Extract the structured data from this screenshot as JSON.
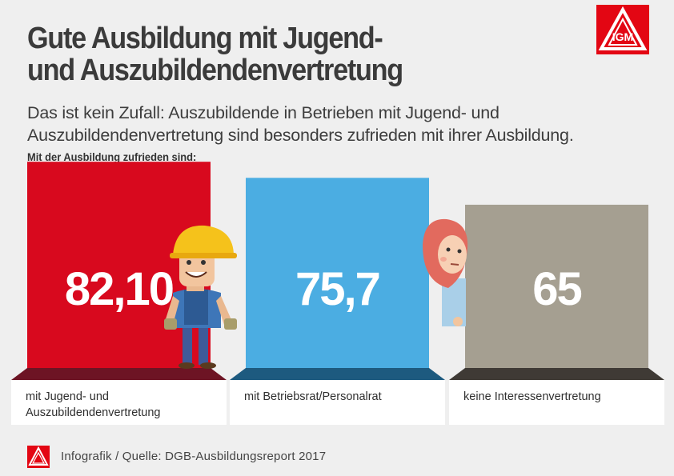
{
  "title_line1": "Gute Ausbildung mit Jugend-",
  "title_line2": "und Auszubildendenvertretung",
  "subtitle_line1": "Das ist kein Zufall: Auszubildende in Betrieben mit Jugend- und",
  "subtitle_line2": "Auszubildendenvertretung sind besonders zufrieden mit ihrer Ausbildung.",
  "chart_caption": "Mit der Ausbildung zufrieden sind:",
  "source": "Infografik / Quelle: DGB-Ausbildungsreport 2017",
  "logo_text": "IGM",
  "chart_data": {
    "type": "bar",
    "categories": [
      [
        "mit Jugend- und",
        "Auszubildendenvertretung"
      ],
      [
        "mit Betriebsrat/Personalrat"
      ],
      [
        "keine Interessenvertretung"
      ]
    ],
    "values": [
      82.1,
      75.7,
      65
    ],
    "value_labels": [
      "82,10",
      "75,7",
      "65"
    ],
    "colors": [
      "#d8091e",
      "#4bade2",
      "#a59f91"
    ],
    "floor_colors": [
      "#6d1424",
      "#1d5a7f",
      "#3f3a35"
    ],
    "brand_color": "#e30613",
    "ylim": [
      0,
      100
    ],
    "grid": false,
    "legend": "none"
  }
}
